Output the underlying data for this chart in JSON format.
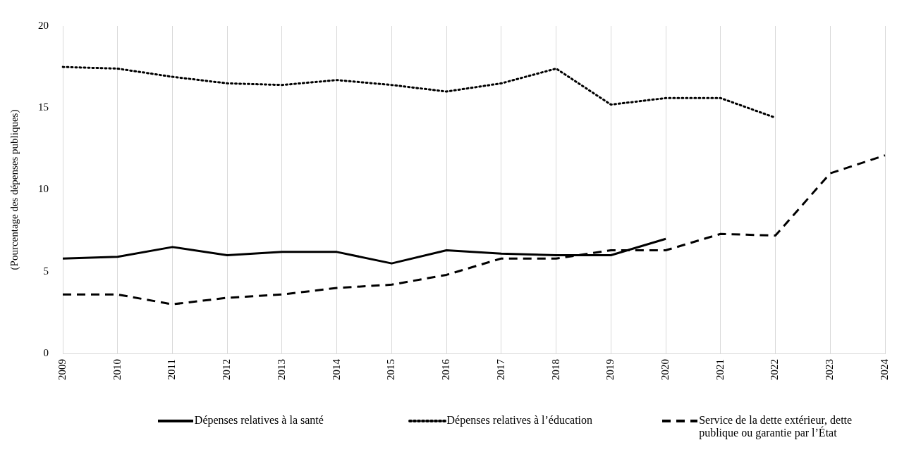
{
  "chart_data": {
    "type": "line",
    "ylabel": "(Pourcentage des dépenses publiques)",
    "categories": [
      "2009",
      "2010",
      "2011",
      "2012",
      "2013",
      "2014",
      "2015",
      "2016",
      "2017",
      "2018",
      "2019",
      "2020",
      "2021",
      "2022",
      "2023",
      "2024"
    ],
    "ylim": [
      0,
      20
    ],
    "yticks": [
      0,
      5,
      10,
      15,
      20
    ],
    "grid": "x",
    "legend": "bottom",
    "marker": "none",
    "series": [
      {
        "name": "Dépenses relatives à la santé",
        "color": "#000000",
        "line_style": "solid",
        "values": [
          5.8,
          5.9,
          6.5,
          6.0,
          6.2,
          6.2,
          5.5,
          6.3,
          6.1,
          6.0,
          6.0,
          7.0,
          null,
          null,
          null,
          null
        ]
      },
      {
        "name": "Dépenses relatives à l’éducation",
        "color": "#000000",
        "line_style": "dotted",
        "values": [
          17.5,
          17.4,
          16.9,
          16.5,
          16.4,
          16.7,
          16.4,
          16.0,
          16.5,
          17.4,
          15.2,
          15.6,
          15.6,
          14.4,
          null,
          null
        ]
      },
      {
        "name": "Service de la dette extérieur, dette publique ou garantie par l’État",
        "color": "#000000",
        "line_style": "dashed",
        "values": [
          3.6,
          3.6,
          3.0,
          3.4,
          3.6,
          4.0,
          4.2,
          4.8,
          5.8,
          5.8,
          6.3,
          6.3,
          7.3,
          7.2,
          11.0,
          12.1
        ]
      }
    ]
  }
}
